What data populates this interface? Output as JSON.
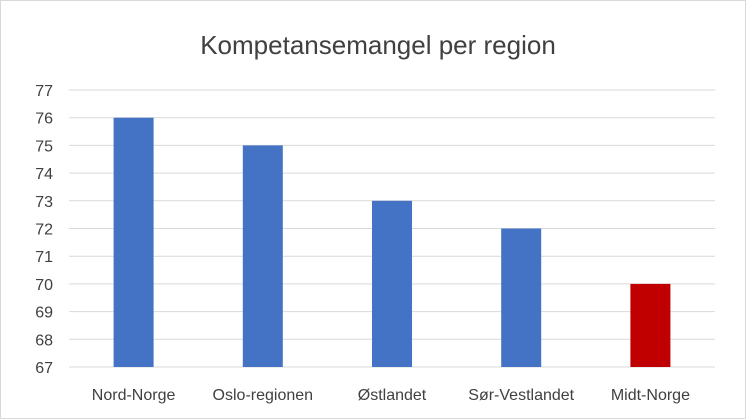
{
  "chart_data": {
    "type": "bar",
    "title": "Kompetansemangel per region",
    "xlabel": "",
    "ylabel": "",
    "categories": [
      "Nord-Norge",
      "Oslo-regionen",
      "Østlandet",
      "Sør-Vestlandet",
      "Midt-Norge"
    ],
    "values": [
      76,
      75,
      73,
      72,
      70
    ],
    "ylim": [
      67,
      77
    ],
    "yticks": [
      67,
      68,
      69,
      70,
      71,
      72,
      73,
      74,
      75,
      76,
      77
    ],
    "bar_colors": [
      "#4472C4",
      "#4472C4",
      "#4472C4",
      "#4472C4",
      "#C00000"
    ],
    "grid": true,
    "legend": "none"
  }
}
